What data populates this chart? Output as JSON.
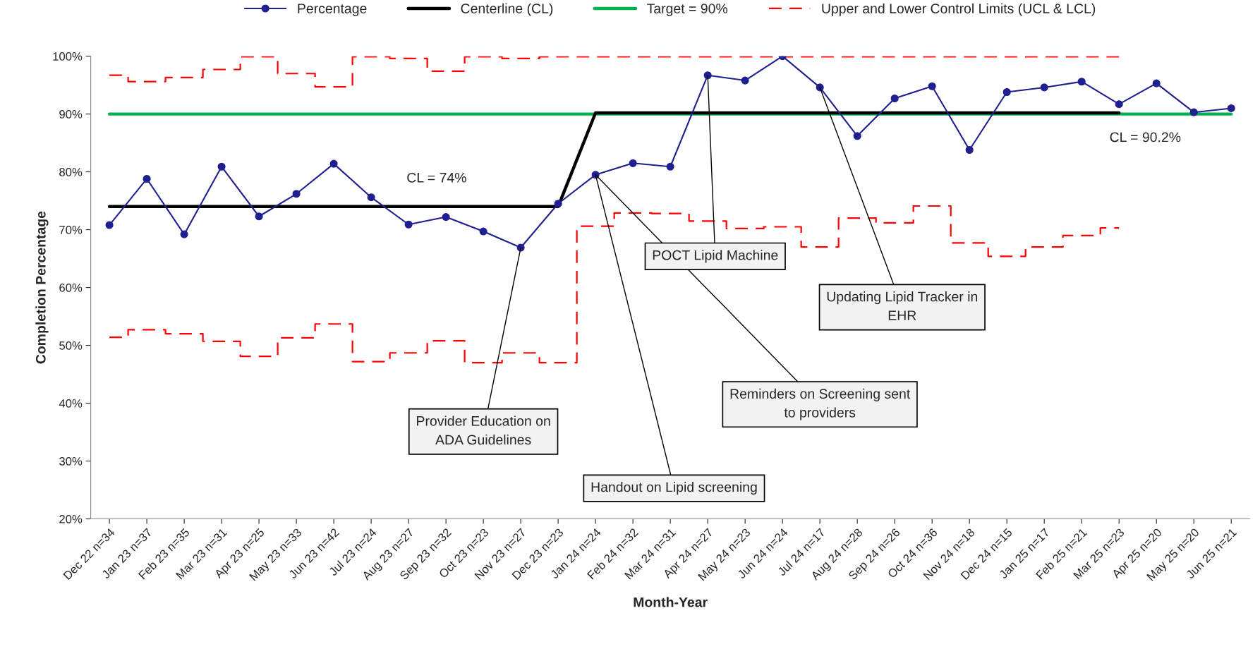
{
  "chart_data": {
    "type": "line",
    "xlabel": "Month-Year",
    "ylabel": "Completion Percentage",
    "categories": [
      "Dec 22 n=34",
      "Jan 23 n=37",
      "Feb 23 n=35",
      "Mar 23 n=31",
      "Apr 23 n=25",
      "May 23 n=33",
      "Jun 23 n=42",
      "Jul 23 n=24",
      "Aug 23 n=27",
      "Sep 23 n=32",
      "Oct 23 n=23",
      "Nov 23 n=27",
      "Dec 23 n=23",
      "Jan 24 n=24",
      "Feb 24 n=32",
      "Mar 24 n=31",
      "Apr 24 n=27",
      "May 24 n=23",
      "Jun 24 n=24",
      "Jul 24 n=17",
      "Aug 24 n=28",
      "Sep 24 n=26",
      "Oct 24 n=36",
      "Nov 24 n=18",
      "Dec 24 n=15",
      "Jan 25 n=17",
      "Feb 25 n=21",
      "Mar 25 n=23",
      "Apr 25 n=20",
      "May 25 n=20",
      "Jun 25 n=21"
    ],
    "series": [
      {
        "name": "Percentage",
        "color": "#1f1f8f",
        "marker": "circle",
        "line_style": "solid",
        "values": [
          70.8,
          78.8,
          69.2,
          80.9,
          72.3,
          76.2,
          81.4,
          75.6,
          70.9,
          72.2,
          69.7,
          66.9,
          74.5,
          79.5,
          81.5,
          80.9,
          96.7,
          95.8,
          100,
          94.6,
          86.2,
          92.7,
          94.8,
          83.8,
          93.8,
          94.6,
          95.6,
          91.7,
          95.3,
          90.3,
          91.0
        ]
      },
      {
        "name": "Centerline (CL)",
        "color": "#000000",
        "marker": "none",
        "line_style": "solid",
        "values": [
          74,
          74,
          74,
          74,
          74,
          74,
          74,
          74,
          74,
          74,
          74,
          74,
          74,
          90.2,
          90.2,
          90.2,
          90.2,
          90.2,
          90.2,
          90.2,
          90.2,
          90.2,
          90.2,
          90.2,
          90.2,
          90.2,
          90.2,
          90.2,
          null,
          null,
          null
        ]
      },
      {
        "name": "Target = 90%",
        "color": "#00b050",
        "marker": "none",
        "line_style": "solid",
        "values": [
          90,
          90,
          90,
          90,
          90,
          90,
          90,
          90,
          90,
          90,
          90,
          90,
          90,
          90,
          90,
          90,
          90,
          90,
          90,
          90,
          90,
          90,
          90,
          90,
          90,
          90,
          90,
          90,
          90,
          90,
          90
        ]
      },
      {
        "name": "Upper and Lower Control Limits (UCL & LCL)",
        "type": "step",
        "color": "#ff0000",
        "line_style": "dashed",
        "values": [
          96.7,
          95.6,
          96.3,
          97.7,
          99.9,
          97.0,
          94.7,
          99.9,
          99.6,
          97.4,
          99.9,
          99.6,
          99.9,
          99.9,
          99.9,
          99.9,
          99.9,
          99.9,
          99.9,
          99.9,
          99.9,
          99.9,
          99.9,
          99.9,
          99.9,
          99.9,
          99.9,
          99.9,
          null,
          null,
          null
        ]
      },
      {
        "type": "step",
        "color": "#ff0000",
        "line_style": "dashed",
        "values": [
          51.4,
          52.7,
          52.0,
          50.7,
          48.1,
          51.3,
          53.7,
          47.2,
          48.7,
          50.8,
          47.0,
          48.7,
          47.0,
          70.6,
          72.9,
          72.8,
          71.5,
          70.2,
          70.5,
          67.0,
          72.0,
          71.2,
          74.1,
          67.7,
          65.4,
          67.0,
          69.0,
          70.3,
          null,
          null,
          null
        ]
      }
    ],
    "ylim": [
      20,
      100
    ],
    "yticks": [
      {
        "value": 20,
        "label": "20%"
      },
      {
        "value": 30,
        "label": "30%"
      },
      {
        "value": 40,
        "label": "40%"
      },
      {
        "value": 50,
        "label": "50%"
      },
      {
        "value": 60,
        "label": "60%"
      },
      {
        "value": 70,
        "label": "70%"
      },
      {
        "value": 80,
        "label": "80%"
      },
      {
        "value": 90,
        "label": "90%"
      },
      {
        "value": 100,
        "label": "100%"
      }
    ],
    "annotations": [
      {
        "text": "Provider Education on\nADA Guidelines",
        "x": "Nov 23 n=27",
        "y": 66.9
      },
      {
        "text": "Handout on Lipid screening",
        "x": "Jan 24 n=24",
        "y": 79.5
      },
      {
        "text": "Reminders on Screening sent\nto providers",
        "x": "Jan 24 n=24",
        "y": 79.5
      },
      {
        "text": "POCT Lipid Machine",
        "x": "Apr 24 n=27",
        "y": 96.7
      },
      {
        "text": "Updating Lipid Tracker in\nEHR",
        "x": "Jul 24 n=17",
        "y": 94.6
      },
      {
        "text": "CL = 74%",
        "x": "Aug 23 n=27",
        "y": 74
      },
      {
        "text": "CL = 90.2%",
        "x": "Apr 25 n=20",
        "y": 90.2
      }
    ],
    "grid": false,
    "legend": "top"
  }
}
